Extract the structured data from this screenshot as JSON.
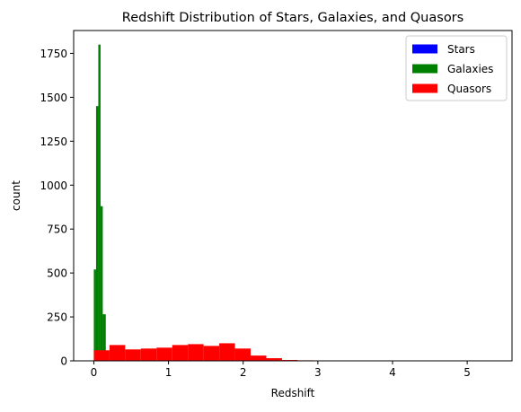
{
  "chart_data": {
    "type": "bar",
    "title": "Redshift Distribution of Stars, Galaxies, and Quasors",
    "xlabel": "Redshift",
    "ylabel": "count",
    "xlim": [
      -0.27,
      5.6
    ],
    "ylim": [
      0,
      1880
    ],
    "xticks": [
      0,
      1,
      2,
      3,
      4,
      5
    ],
    "yticks": [
      0,
      250,
      500,
      750,
      1000,
      1250,
      1500,
      1750
    ],
    "grid": false,
    "legend": "top-right",
    "series": [
      {
        "name": "Stars",
        "color": "#0000ff",
        "bins": [
          {
            "x0": -0.004,
            "x1": 0.004,
            "count": 0
          }
        ]
      },
      {
        "name": "Galaxies",
        "color": "#008000",
        "bins": [
          {
            "x0": 0.0,
            "x1": 0.03,
            "count": 520
          },
          {
            "x0": 0.03,
            "x1": 0.06,
            "count": 1450
          },
          {
            "x0": 0.06,
            "x1": 0.09,
            "count": 1800
          },
          {
            "x0": 0.09,
            "x1": 0.12,
            "count": 880
          },
          {
            "x0": 0.12,
            "x1": 0.16,
            "count": 265
          }
        ]
      },
      {
        "name": "Quasors",
        "color": "#ff0000",
        "bins": [
          {
            "x0": 0.0,
            "x1": 0.21,
            "count": 60
          },
          {
            "x0": 0.21,
            "x1": 0.42,
            "count": 90
          },
          {
            "x0": 0.42,
            "x1": 0.63,
            "count": 65
          },
          {
            "x0": 0.63,
            "x1": 0.84,
            "count": 70
          },
          {
            "x0": 0.84,
            "x1": 1.05,
            "count": 75
          },
          {
            "x0": 1.05,
            "x1": 1.26,
            "count": 90
          },
          {
            "x0": 1.26,
            "x1": 1.47,
            "count": 95
          },
          {
            "x0": 1.47,
            "x1": 1.68,
            "count": 85
          },
          {
            "x0": 1.68,
            "x1": 1.89,
            "count": 100
          },
          {
            "x0": 1.89,
            "x1": 2.1,
            "count": 70
          },
          {
            "x0": 2.1,
            "x1": 2.31,
            "count": 30
          },
          {
            "x0": 2.31,
            "x1": 2.52,
            "count": 15
          },
          {
            "x0": 2.52,
            "x1": 2.73,
            "count": 5
          },
          {
            "x0": 2.73,
            "x1": 2.94,
            "count": 3
          },
          {
            "x0": 2.94,
            "x1": 3.15,
            "count": 1
          }
        ]
      }
    ]
  }
}
